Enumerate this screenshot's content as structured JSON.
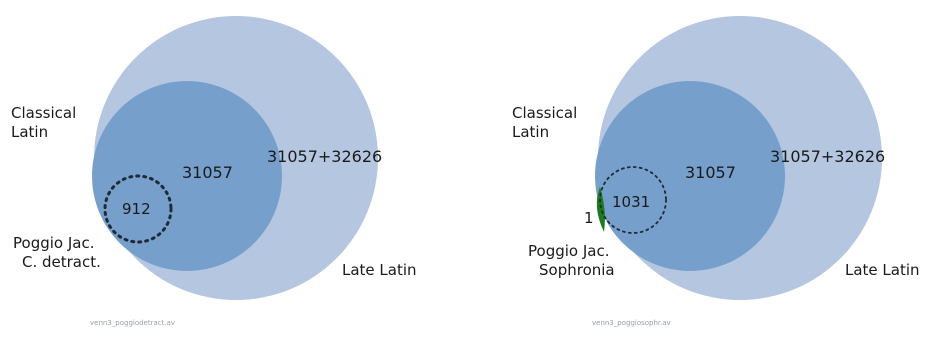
{
  "colors": {
    "outer_circle": "#b5c6e0",
    "inner_circle": "#779fcb",
    "dotted_circle": "#1f2a36",
    "green_sliver": "#1e7a1e",
    "text": "#1a1a1a"
  },
  "panels": [
    {
      "outer_label": "Late Latin",
      "inner_label": "Classical\nLatin",
      "inner_count": "31057",
      "outer_count": "31057+32626",
      "subset_label": "Poggio Jac.\nC. detract.",
      "subset_count": "912",
      "extra_count": "",
      "caption": "venn3_poggiodetract.av"
    },
    {
      "outer_label": "Late Latin",
      "inner_label": "Classical\nLatin",
      "inner_count": "31057",
      "outer_count": "31057+32626",
      "subset_label": "Poggio Jac.\nSophronia",
      "subset_count": "1031",
      "extra_count": "1",
      "caption": "venn3_poggiosophr.av"
    }
  ]
}
